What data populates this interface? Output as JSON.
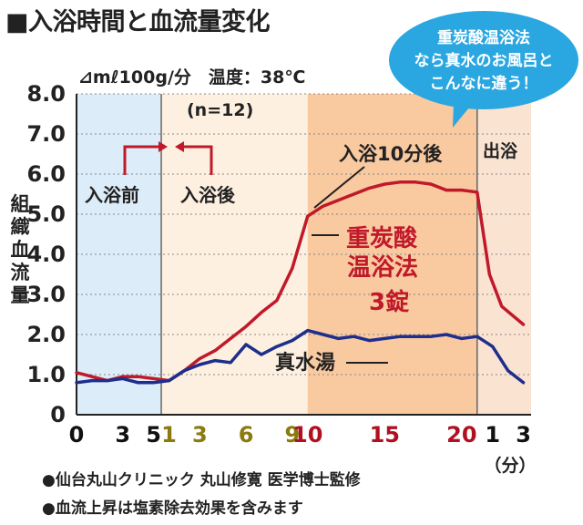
{
  "title": "■入浴時間と血流量変化",
  "subtitle": "⊿mℓ100g/分　温度：38℃",
  "sample_size": "(n=12)",
  "y_axis_label": [
    "組",
    "織",
    "血",
    "流",
    "量"
  ],
  "callout": [
    "重炭酸温浴法",
    "なら真水のお風呂と",
    "こんなに違う！"
  ],
  "phase_labels": {
    "before": "入浴前",
    "after": "入浴後",
    "after10": "入浴10分後",
    "exit": "出浴"
  },
  "series_labels": {
    "tablet": [
      "重炭酸",
      "温浴法",
      "3錠"
    ],
    "water": "真水湯"
  },
  "x_unit": "（分）",
  "notes": [
    "●仙台丸山クリニック 丸山修寛 医学博士監修",
    "●血流上昇は塩素除去効果を含みます"
  ],
  "colors": {
    "tablet_line": "#c0192a",
    "water_line": "#1e2e8c",
    "before_band": "#dcecf8",
    "bath_band": "#fdf0e0",
    "after10_band": "#f9c9a0",
    "exit_band": "#fbe3d2",
    "tick_before": "#111111",
    "tick_bath": "#8a7a10",
    "tick_after10": "#b01020",
    "tick_exit": "#111111",
    "callout_bg": "#2aa7e0"
  },
  "chart_data": {
    "type": "line",
    "ylim": [
      0,
      8
    ],
    "yticks": [
      "0",
      "1.0",
      "2.0",
      "3.0",
      "4.0",
      "5.0",
      "6.0",
      "7.0",
      "8.0"
    ],
    "xticks": [
      {
        "label": "0",
        "x": 0,
        "color": "tick_before"
      },
      {
        "label": "3",
        "x": 3,
        "color": "tick_before"
      },
      {
        "label": "5",
        "x": 5,
        "color": "tick_before"
      },
      {
        "label": "1",
        "x": 6,
        "color": "tick_bath"
      },
      {
        "label": "3",
        "x": 8,
        "color": "tick_bath"
      },
      {
        "label": "6",
        "x": 11,
        "color": "tick_bath"
      },
      {
        "label": "9",
        "x": 14,
        "color": "tick_bath"
      },
      {
        "label": "10",
        "x": 15,
        "color": "tick_after10"
      },
      {
        "label": "15",
        "x": 20,
        "color": "tick_after10"
      },
      {
        "label": "20",
        "x": 25,
        "color": "tick_after10"
      },
      {
        "label": "1",
        "x": 27,
        "color": "tick_exit"
      },
      {
        "label": "3",
        "x": 29,
        "color": "tick_exit"
      }
    ],
    "phases": [
      {
        "label": "入浴前",
        "x": [
          0,
          5.5
        ]
      },
      {
        "label": "入浴",
        "x": [
          5.5,
          15
        ]
      },
      {
        "label": "入浴10分後",
        "x": [
          15,
          26
        ]
      },
      {
        "label": "出浴",
        "x": [
          26,
          29.5
        ]
      }
    ],
    "series": [
      {
        "name": "重炭酸温浴法3錠",
        "color": "tablet_line",
        "x": [
          0,
          1,
          2,
          3,
          4,
          5,
          6,
          7,
          8,
          9,
          10,
          11,
          12,
          13,
          14,
          15,
          16,
          17,
          18,
          19,
          20,
          21,
          22,
          23,
          24,
          25,
          26,
          26.8,
          27.6,
          29
        ],
        "y": [
          1.05,
          0.95,
          0.85,
          0.95,
          0.95,
          0.9,
          0.85,
          1.1,
          1.4,
          1.6,
          1.9,
          2.2,
          2.55,
          2.85,
          3.65,
          4.95,
          5.2,
          5.35,
          5.5,
          5.65,
          5.75,
          5.8,
          5.8,
          5.75,
          5.6,
          5.6,
          5.55,
          3.5,
          2.7,
          2.25
        ]
      },
      {
        "name": "真水湯",
        "color": "water_line",
        "x": [
          0,
          1,
          2,
          3,
          4,
          5,
          6,
          7,
          8,
          9,
          10,
          11,
          12,
          13,
          14,
          15,
          16,
          17,
          18,
          19,
          20,
          21,
          22,
          23,
          24,
          25,
          26,
          27,
          28,
          29
        ],
        "y": [
          0.8,
          0.85,
          0.85,
          0.9,
          0.8,
          0.8,
          0.85,
          1.1,
          1.25,
          1.35,
          1.3,
          1.75,
          1.5,
          1.7,
          1.85,
          2.1,
          2.0,
          1.9,
          1.95,
          1.85,
          1.9,
          1.95,
          1.95,
          1.95,
          2.0,
          1.9,
          1.95,
          1.7,
          1.1,
          0.8
        ]
      }
    ]
  }
}
